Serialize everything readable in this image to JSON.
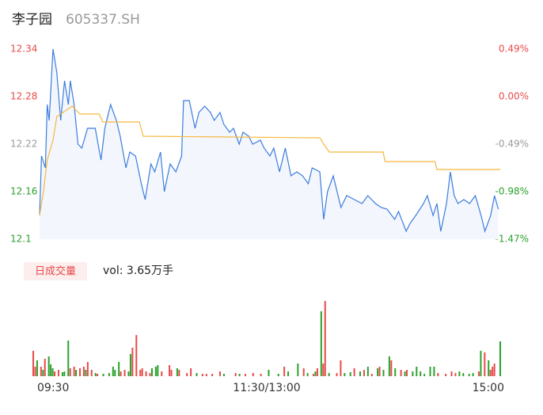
{
  "chart_data": [
    {
      "type": "line",
      "title": "李子园",
      "subtitle": "605337.SH",
      "xlim": [
        0,
        240
      ],
      "ylim": [
        12.1,
        12.34
      ],
      "y2lim": [
        -1.47,
        0.49
      ],
      "yticks": [
        12.34,
        12.28,
        12.22,
        12.16,
        12.1
      ],
      "ytick_colors": [
        "#e84a4a",
        "#e84a4a",
        "#999999",
        "#2ca02c",
        "#2ca02c"
      ],
      "y2ticks": [
        {
          "value": 0.49,
          "label": "0.49%"
        },
        {
          "value": 0.0,
          "label": "0.00%"
        },
        {
          "value": -0.49,
          "label": "-0.49%"
        },
        {
          "value": -0.98,
          "label": "-0.98%"
        },
        {
          "value": -1.47,
          "label": "-1.47%"
        }
      ],
      "area_fill": "#f3f6fd",
      "series": [
        {
          "color": "#3b7ddd",
          "x": [
            0,
            1,
            3,
            4,
            5,
            7,
            9,
            11,
            13,
            15,
            16,
            18,
            20,
            22,
            25,
            29,
            32,
            34,
            37,
            40,
            42,
            45,
            47,
            50,
            53,
            55,
            58,
            60,
            63,
            65,
            68,
            71,
            74,
            75,
            78,
            81,
            83,
            86,
            89,
            91,
            94,
            96,
            99,
            101,
            104,
            106,
            109,
            111,
            115,
            117,
            120,
            122,
            125,
            128,
            131,
            134,
            137,
            140,
            142,
            146,
            148,
            150,
            153,
            157,
            160,
            164,
            168,
            171,
            175,
            178,
            181,
            185,
            187,
            191,
            193,
            196,
            200,
            202,
            205,
            207,
            209,
            212,
            214,
            216,
            218,
            221,
            224,
            227,
            230,
            232,
            235,
            237,
            239
          ],
          "values": [
            12.13,
            12.205,
            12.19,
            12.27,
            12.25,
            12.34,
            12.31,
            12.25,
            12.3,
            12.27,
            12.3,
            12.27,
            12.22,
            12.215,
            12.24,
            12.24,
            12.2,
            12.24,
            12.27,
            12.25,
            12.23,
            12.19,
            12.21,
            12.205,
            12.17,
            12.15,
            12.195,
            12.185,
            12.21,
            12.16,
            12.195,
            12.185,
            12.205,
            12.275,
            12.275,
            12.24,
            12.26,
            12.268,
            12.26,
            12.25,
            12.26,
            12.245,
            12.235,
            12.24,
            12.22,
            12.235,
            12.23,
            12.22,
            12.225,
            12.215,
            12.205,
            12.215,
            12.185,
            12.215,
            12.18,
            12.185,
            12.18,
            12.17,
            12.19,
            12.185,
            12.125,
            12.16,
            12.18,
            12.14,
            12.155,
            12.15,
            12.145,
            12.155,
            12.145,
            12.14,
            12.138,
            12.125,
            12.135,
            12.11,
            12.12,
            12.13,
            12.145,
            12.155,
            12.13,
            12.145,
            12.11,
            12.145,
            12.185,
            12.155,
            12.145,
            12.15,
            12.145,
            12.155,
            12.13,
            12.11,
            12.13,
            12.155,
            12.138
          ]
        },
        {
          "color": "#f5b83d",
          "x": [
            0,
            2,
            4,
            7,
            9,
            11,
            17,
            21,
            31,
            33,
            52,
            54,
            146,
            148,
            151,
            179,
            180,
            206,
            207,
            240
          ],
          "values": [
            12.13,
            12.16,
            12.2,
            12.225,
            12.255,
            12.258,
            12.268,
            12.258,
            12.258,
            12.248,
            12.248,
            12.23,
            12.228,
            12.22,
            12.21,
            12.21,
            12.198,
            12.198,
            12.188,
            12.188
          ]
        }
      ]
    },
    {
      "type": "bar",
      "title": "日成交量",
      "annotation": "vol: 3.65万手",
      "xlim": [
        0,
        240
      ],
      "ylim": [
        0,
        2000
      ],
      "xticks": [
        {
          "value": 0,
          "label": "09:30"
        },
        {
          "value": 120,
          "label": "11:30/13:00"
        },
        {
          "value": 240,
          "label": "15:00"
        }
      ],
      "series": [
        {
          "color": "#e84a4a",
          "x": [
            0,
            1,
            4,
            6,
            11,
            13,
            19,
            21,
            24,
            26,
            28,
            30,
            33,
            45,
            47,
            51,
            53,
            55,
            56,
            58,
            60,
            66,
            70,
            71,
            75,
            79,
            81,
            87,
            89,
            92,
            96,
            104,
            109,
            113,
            117,
            129,
            139,
            144,
            146,
            149,
            150,
            156,
            158,
            165,
            170,
            174,
            178,
            184,
            189,
            192,
            208,
            212,
            215,
            217,
            229,
            232,
            235,
            236,
            237
          ],
          "values": [
            640,
            240,
            240,
            440,
            120,
            160,
            200,
            240,
            200,
            240,
            360,
            160,
            60,
            120,
            160,
            720,
            1040,
            160,
            200,
            120,
            80,
            120,
            280,
            160,
            160,
            80,
            200,
            60,
            60,
            60,
            120,
            80,
            60,
            80,
            60,
            240,
            200,
            60,
            200,
            320,
            1900,
            80,
            400,
            200,
            160,
            60,
            240,
            400,
            160,
            160,
            80,
            60,
            120,
            80,
            120,
            600,
            160,
            240,
            320
          ]
        },
        {
          "color": "#2ca02c",
          "x": [
            2,
            5,
            8,
            9,
            10,
            15,
            16,
            18,
            22,
            27,
            32,
            36,
            39,
            41,
            42,
            44,
            49,
            50,
            61,
            63,
            64,
            74,
            84,
            98,
            106,
            121,
            126,
            131,
            136,
            141,
            145,
            148,
            152,
            160,
            163,
            168,
            172,
            177,
            180,
            183,
            186,
            191,
            195,
            197,
            199,
            201,
            204,
            206,
            219,
            221,
            224,
            226,
            230,
            234,
            240
          ],
          "values": [
            400,
            160,
            500,
            300,
            200,
            100,
            120,
            900,
            160,
            160,
            80,
            60,
            80,
            240,
            160,
            360,
            120,
            560,
            200,
            240,
            280,
            200,
            80,
            60,
            60,
            160,
            60,
            120,
            320,
            80,
            120,
            1640,
            80,
            80,
            100,
            120,
            240,
            200,
            160,
            500,
            200,
            120,
            120,
            240,
            120,
            60,
            240,
            240,
            120,
            80,
            60,
            80,
            640,
            400,
            880
          ]
        }
      ]
    }
  ]
}
